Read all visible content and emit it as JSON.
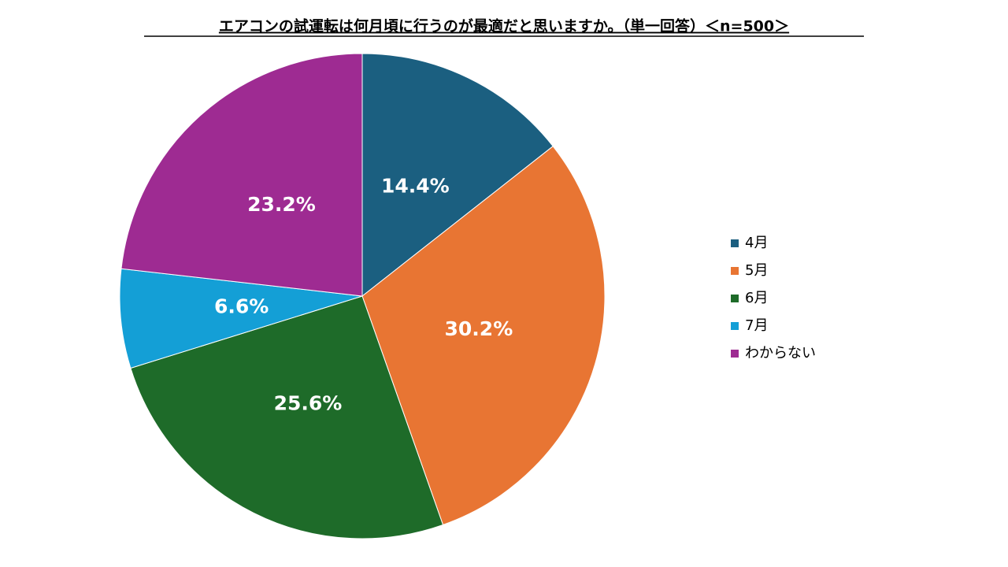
{
  "chart_data": {
    "type": "pie",
    "title": "エアコンの試運転は何月頃に行うのが最適だと思いますか。（単一回答）＜n=500＞",
    "categories": [
      "4月",
      "5月",
      "6月",
      "7月",
      "わからない"
    ],
    "values": [
      14.4,
      30.2,
      25.6,
      6.6,
      23.2
    ],
    "value_labels": [
      "14.4%",
      "30.2%",
      "25.6%",
      "6.6%",
      "23.2%"
    ],
    "colors": [
      "#1b5f80",
      "#e87533",
      "#1e6b29",
      "#149fd6",
      "#9e2b92"
    ],
    "legend": "right"
  }
}
